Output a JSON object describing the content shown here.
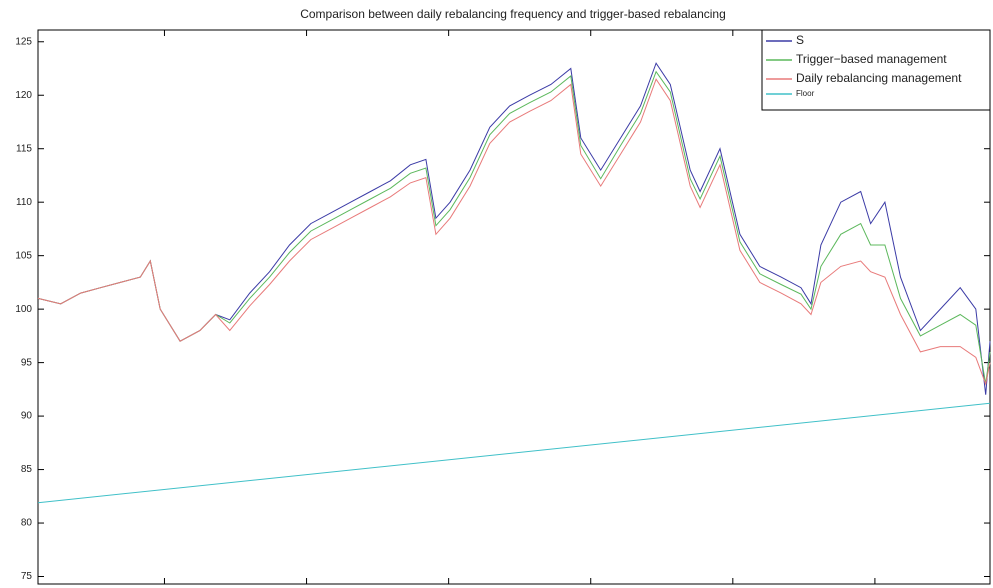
{
  "chart_data": {
    "type": "line",
    "title": "Comparison between daily rebalancing frequency and trigger-based rebalancing",
    "x": [
      11,
      27,
      41,
      55,
      69,
      83,
      90,
      97,
      111,
      125,
      136,
      146,
      160,
      174,
      188,
      203,
      217,
      231,
      245,
      259,
      273,
      284,
      291,
      301,
      315,
      329,
      343,
      357,
      372,
      386,
      393,
      407,
      421,
      435,
      446,
      456,
      470,
      477,
      491,
      505,
      519,
      534,
      548,
      555,
      562,
      576,
      590,
      597,
      607,
      618,
      632,
      646,
      660,
      671,
      678,
      681
    ],
    "series": [
      {
        "name": "S",
        "color": "#3b3ba6",
        "values": [
          101,
          100.5,
          101.5,
          102,
          102.5,
          103,
          104.5,
          100,
          97,
          98,
          99.5,
          99,
          101.5,
          103.5,
          106,
          108,
          109,
          110,
          111,
          112,
          113.5,
          114,
          108.5,
          110,
          113,
          117,
          119,
          120,
          121,
          122.5,
          116,
          113,
          116,
          119,
          123,
          121,
          113,
          111,
          115,
          107,
          104,
          103,
          102,
          100.5,
          106,
          110,
          111,
          108,
          110,
          103,
          98,
          100,
          102,
          100,
          92,
          97
        ]
      },
      {
        "name": "Trigger−based management",
        "color": "#5cb85c",
        "values": [
          101,
          100.5,
          101.5,
          102,
          102.5,
          103,
          104.5,
          100,
          97,
          98,
          99.5,
          98.7,
          101,
          103,
          105.3,
          107.3,
          108.3,
          109.3,
          110.3,
          111.3,
          112.7,
          113.2,
          107.8,
          109.3,
          112.3,
          116.3,
          118.3,
          119.3,
          120.3,
          121.8,
          115.3,
          112.2,
          115.3,
          118.3,
          122.2,
          120.3,
          112.2,
          110.3,
          114.3,
          106.3,
          103.3,
          102.3,
          101.4,
          100,
          104,
          107,
          108,
          106,
          106,
          101,
          97.5,
          98.5,
          99.5,
          98.5,
          93,
          96
        ]
      },
      {
        "name": "Daily rebalancing management",
        "color": "#e87a7a",
        "values": [
          101,
          100.5,
          101.5,
          102,
          102.5,
          103,
          104.5,
          100,
          97,
          98,
          99.5,
          98,
          100.3,
          102.3,
          104.5,
          106.5,
          107.5,
          108.5,
          109.5,
          110.5,
          111.8,
          112.3,
          107,
          108.5,
          111.5,
          115.5,
          117.5,
          118.5,
          119.5,
          121,
          114.5,
          111.5,
          114.5,
          117.5,
          121.5,
          119.5,
          111.5,
          109.5,
          113.5,
          105.5,
          102.5,
          101.5,
          100.5,
          99.5,
          102.5,
          104,
          104.5,
          103.5,
          103,
          99.5,
          96,
          96.5,
          96.5,
          95.5,
          93,
          95
        ]
      },
      {
        "name": "Floor",
        "color": "#40c0c8",
        "x": [
          11,
          681
        ],
        "values": [
          81.9,
          91.2
        ]
      }
    ],
    "xlim": [
      11,
      681
    ],
    "xticks": [
      100,
      200,
      300,
      400,
      500,
      600
    ],
    "ylim": [
      74.3,
      126.1
    ],
    "yticks": [
      75,
      80,
      85,
      90,
      95,
      100,
      105,
      110,
      115,
      120,
      125
    ],
    "legend": "upper right"
  }
}
